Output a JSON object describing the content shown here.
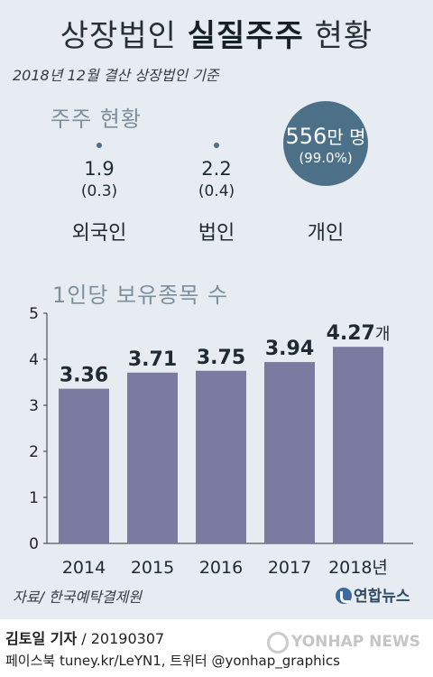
{
  "header": {
    "title_pre": "상장법인",
    "title_bold": "실질주주",
    "title_post": "현황",
    "subtitle": "2018년 12월 결산 상장법인 기준"
  },
  "holders": {
    "section_title": "주주 현황",
    "items": [
      {
        "value": "1.9",
        "share": "(0.3)",
        "label": "외국인"
      },
      {
        "value": "2.2",
        "share": "(0.4)",
        "label": "법인"
      }
    ],
    "individual": {
      "value": "556",
      "unit": "만 명",
      "share": "(99.0%)",
      "label": "개인"
    }
  },
  "colors": {
    "bar": "#7b7ba1",
    "circle": "#4d7089",
    "panel": "#e6ecf1"
  },
  "chart_data": {
    "type": "bar",
    "title": "1인당 보유종목 수",
    "categories": [
      "2014",
      "2015",
      "2016",
      "2017",
      "2018"
    ],
    "category_labels": [
      "2014",
      "2015",
      "2016",
      "2017",
      "2018년"
    ],
    "values": [
      3.36,
      3.71,
      3.75,
      3.94,
      4.27
    ],
    "value_labels": [
      "3.36",
      "3.71",
      "3.75",
      "3.94",
      "4.27"
    ],
    "value_unit": "개",
    "yticks": [
      0,
      1,
      2,
      3,
      4,
      5
    ],
    "ylim": [
      0,
      5
    ],
    "grid": false
  },
  "footer": {
    "source": "자료/ 한국예탁결제원",
    "logo": "연합뉴스",
    "reporter": "김토일 기자",
    "date": " / 20190307",
    "social": "페이스북 tuney.kr/LeYN1, 트위터 @yonhap_graphics",
    "watermark": "YONHAP NEWS"
  }
}
